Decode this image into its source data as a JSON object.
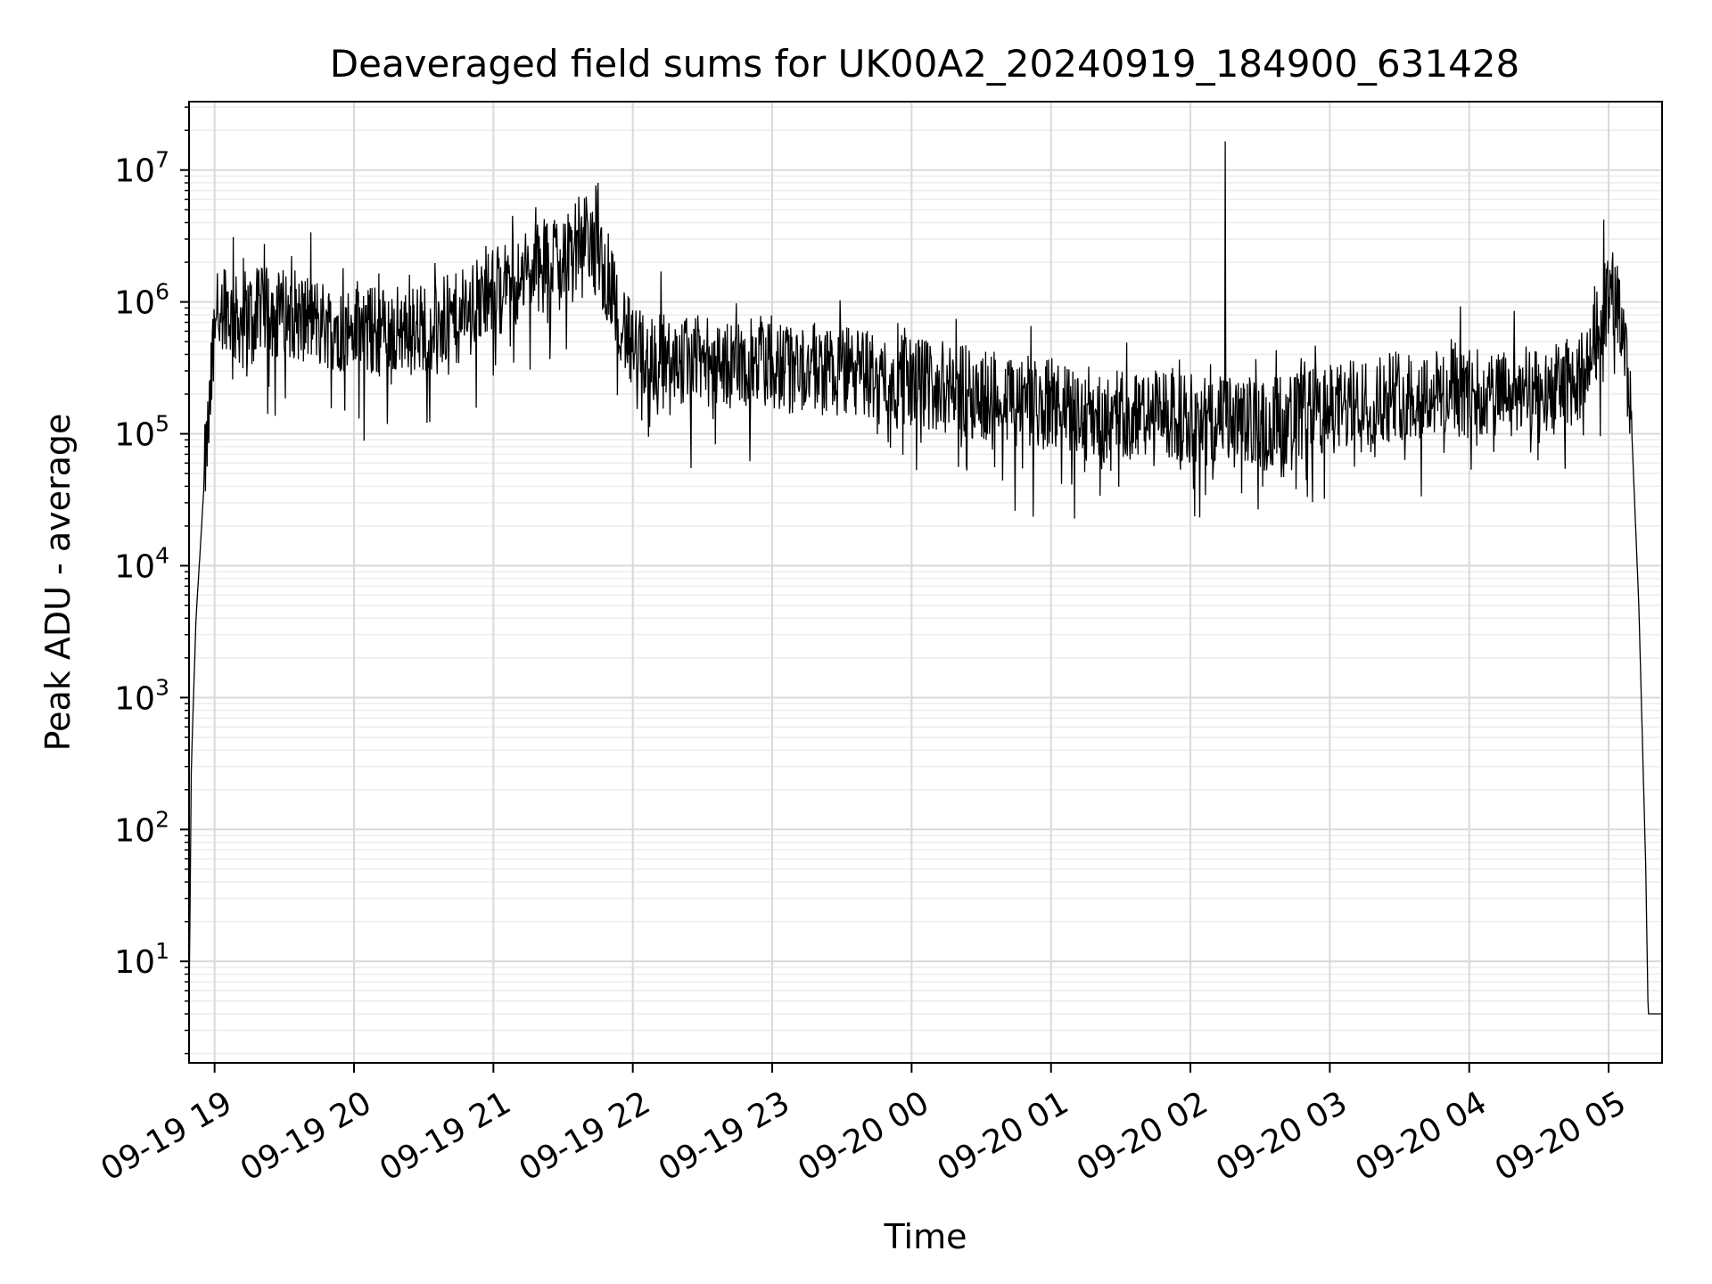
{
  "chart_data": {
    "type": "line",
    "title": "Deaveraged field sums for UK00A2_20240919_184900_631428",
    "xlabel": "Time",
    "ylabel": "Peak ADU - average",
    "yscale": "log",
    "ylim": [
      1.7,
      33000000
    ],
    "xlim": [
      "2024-09-19 18:49",
      "2024-09-20 05:23"
    ],
    "grid": "major and minor",
    "line_color": "#000000",
    "x_ticks": [
      {
        "value": "2024-09-19 19:00",
        "label": "09-19 19"
      },
      {
        "value": "2024-09-19 20:00",
        "label": "09-19 20"
      },
      {
        "value": "2024-09-19 21:00",
        "label": "09-19 21"
      },
      {
        "value": "2024-09-19 22:00",
        "label": "09-19 22"
      },
      {
        "value": "2024-09-19 23:00",
        "label": "09-19 23"
      },
      {
        "value": "2024-09-20 00:00",
        "label": "09-20 00"
      },
      {
        "value": "2024-09-20 01:00",
        "label": "09-20 01"
      },
      {
        "value": "2024-09-20 02:00",
        "label": "09-20 02"
      },
      {
        "value": "2024-09-20 03:00",
        "label": "09-20 03"
      },
      {
        "value": "2024-09-20 04:00",
        "label": "09-20 04"
      },
      {
        "value": "2024-09-20 05:00",
        "label": "09-20 05"
      }
    ],
    "y_ticks": [
      {
        "value": 10,
        "base": "10",
        "exp": "1"
      },
      {
        "value": 100,
        "base": "10",
        "exp": "2"
      },
      {
        "value": 1000,
        "base": "10",
        "exp": "3"
      },
      {
        "value": 10000,
        "base": "10",
        "exp": "4"
      },
      {
        "value": 100000,
        "base": "10",
        "exp": "5"
      },
      {
        "value": 1000000,
        "base": "10",
        "exp": "6"
      },
      {
        "value": 10000000,
        "base": "10",
        "exp": "7"
      }
    ],
    "series": [
      {
        "x": [
          "2024-09-19 18:49",
          "2024-09-19 18:50",
          "2024-09-19 18:52",
          "2024-09-19 18:54",
          "2024-09-19 18:56",
          "2024-09-19 18:58",
          "2024-09-19 19:00",
          "2024-09-19 19:04",
          "2024-09-19 19:08",
          "2024-09-19 19:15",
          "2024-09-19 19:25",
          "2024-09-19 19:35",
          "2024-09-19 19:45",
          "2024-09-19 20:00",
          "2024-09-19 20:15",
          "2024-09-19 20:30",
          "2024-09-19 20:45",
          "2024-09-19 21:00",
          "2024-09-19 21:15",
          "2024-09-19 21:30",
          "2024-09-19 21:40",
          "2024-09-19 21:50",
          "2024-09-19 22:00",
          "2024-09-19 22:30",
          "2024-09-19 23:00",
          "2024-09-19 23:30",
          "2024-09-20 00:00",
          "2024-09-20 00:30",
          "2024-09-20 01:00",
          "2024-09-20 01:30",
          "2024-09-20 02:00",
          "2024-09-20 02:30",
          "2024-09-20 03:00",
          "2024-09-20 03:30",
          "2024-09-20 04:00",
          "2024-09-20 04:30",
          "2024-09-20 04:50",
          "2024-09-20 05:00",
          "2024-09-20 05:06",
          "2024-09-20 05:10",
          "2024-09-20 05:13",
          "2024-09-20 05:16",
          "2024-09-20 05:17",
          "2024-09-20 05:23"
        ],
        "y": [
          4,
          300,
          4000,
          15000,
          60000,
          150000,
          800000,
          1100000,
          700000,
          800000,
          850000,
          800000,
          700000,
          600000,
          600000,
          650000,
          750000,
          1200000,
          1600000,
          2500000,
          3000000,
          1500000,
          400000,
          350000,
          330000,
          300000,
          250000,
          200000,
          160000,
          140000,
          130000,
          120000,
          150000,
          200000,
          200000,
          190000,
          280000,
          1200000,
          800000,
          100000,
          5000,
          50,
          4,
          4
        ]
      }
    ],
    "noise_log10": 0.35,
    "spikes": [
      {
        "x": "2024-09-19 19:08",
        "y": 3100000
      },
      {
        "x": "2024-09-19 21:45",
        "y": 8000000
      },
      {
        "x": "2024-09-20 02:15",
        "y": 16500000
      },
      {
        "x": "2024-09-20 04:58",
        "y": 4200000
      }
    ]
  }
}
